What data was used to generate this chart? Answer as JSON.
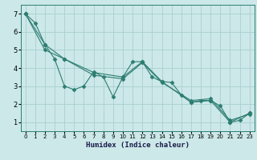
{
  "xlabel": "Humidex (Indice chaleur)",
  "bg_color": "#cce8e8",
  "line_color": "#2d7d72",
  "grid_color": "#aacfcf",
  "xlim": [
    -0.5,
    23.5
  ],
  "ylim": [
    0.5,
    7.5
  ],
  "xticks": [
    0,
    1,
    2,
    3,
    4,
    5,
    6,
    7,
    8,
    9,
    10,
    11,
    12,
    13,
    14,
    15,
    16,
    17,
    18,
    19,
    20,
    21,
    22,
    23
  ],
  "yticks": [
    1,
    2,
    3,
    4,
    5,
    6,
    7
  ],
  "line1_x": [
    0,
    1,
    2,
    3,
    4,
    5,
    6,
    7,
    8,
    9,
    10,
    11,
    12,
    13,
    14,
    15,
    16,
    17,
    18,
    19,
    20,
    21,
    22,
    23
  ],
  "line1_y": [
    7.0,
    6.5,
    5.3,
    4.5,
    3.0,
    2.8,
    3.0,
    3.8,
    3.5,
    2.4,
    3.5,
    4.35,
    4.35,
    3.5,
    3.25,
    3.2,
    2.5,
    2.1,
    2.2,
    2.2,
    1.9,
    1.0,
    1.1,
    1.5
  ],
  "line2_x": [
    0,
    2,
    4,
    7,
    10,
    12,
    14,
    17,
    19,
    21,
    23
  ],
  "line2_y": [
    7.0,
    5.3,
    4.5,
    3.75,
    3.5,
    4.35,
    3.25,
    2.1,
    2.2,
    1.0,
    1.5
  ],
  "line3_x": [
    0,
    2,
    4,
    7,
    10,
    12,
    14,
    17,
    19,
    21,
    23
  ],
  "line3_y": [
    7.0,
    5.0,
    4.5,
    3.6,
    3.4,
    4.3,
    3.2,
    2.2,
    2.3,
    1.1,
    1.45
  ],
  "marker": "D",
  "markersize": 2.5,
  "linewidth": 0.8
}
